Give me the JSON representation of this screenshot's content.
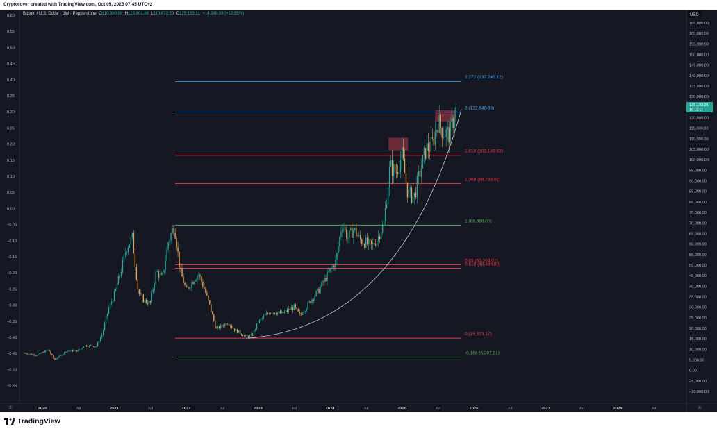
{
  "header": {
    "credit": "Cryptorover created with TradingView.com, Oct 05, 2025 07:45 UTC+2"
  },
  "symbol": {
    "name": "Bitcoin / U.S. Dollar · 1W · Pepperstone",
    "o_label": "O",
    "o": "110,880.09",
    "h_label": "H",
    "h": "125,801.86",
    "l_label": "L",
    "l": "110,672.53",
    "c_label": "C",
    "c": "125,133.31",
    "change": "+14,248.83 (+12.85%)"
  },
  "axes": {
    "currency": "USD",
    "right_ticks": [
      "165,000.00",
      "160,000.00",
      "155,000.00",
      "150,000.00",
      "145,000.00",
      "140,000.00",
      "135,000.00",
      "130,000.00",
      "125,000.00",
      "120,000.00",
      "115,000.00",
      "110,000.00",
      "105,000.00",
      "100,000.00",
      "95,000.00",
      "90,000.00",
      "85,000.00",
      "80,000.00",
      "75,000.00",
      "70,000.00",
      "65,000.00",
      "60,000.00",
      "55,000.00",
      "50,000.00",
      "45,000.00",
      "40,000.00",
      "35,000.00",
      "30,000.00",
      "25,000.00",
      "20,000.00",
      "15,000.00",
      "10,000.00",
      "5,000.00",
      "0.00",
      "−5,000.00",
      "−10,000.00"
    ],
    "left_ticks": [
      "0.60",
      "0.55",
      "0.50",
      "0.45",
      "0.40",
      "0.35",
      "0.30",
      "0.25",
      "0.20",
      "0.15",
      "0.10",
      "0.05",
      "0.00",
      "−0.05",
      "−0.10",
      "−0.15",
      "−0.20",
      "−0.25",
      "−0.30",
      "−0.35",
      "−0.40",
      "−0.45",
      "−0.50",
      "−0.55"
    ],
    "x_ticks": [
      "2020",
      "Jul",
      "2021",
      "Jul",
      "2022",
      "Jul",
      "2023",
      "Jul",
      "2024",
      "Jul",
      "2025",
      "Jul",
      "2026",
      "Jul",
      "2027",
      "Jul",
      "2028",
      "Jul"
    ],
    "x_tick_bold": [
      true,
      false,
      true,
      false,
      true,
      false,
      true,
      false,
      true,
      false,
      true,
      false,
      true,
      false,
      true,
      false,
      true,
      false
    ],
    "price_tag": {
      "value": "125,133.31",
      "sub": "1d 13:11",
      "color": "#26a69a"
    },
    "corner_left": "Z",
    "corner_right": "A"
  },
  "fib_levels": [
    {
      "label": "2.272 (137,245.12)",
      "price": 137245.12,
      "color": "#42a5f5"
    },
    {
      "label": "2 (122,648.83)",
      "price": 122648.83,
      "color": "#42a5f5"
    },
    {
      "label": "1.618 (102,149.63)",
      "price": 102149.63,
      "color": "#f23645"
    },
    {
      "label": "1.368 (88,733.92)",
      "price": 88733.92,
      "color": "#f23645"
    },
    {
      "label": "1 (68,986.00)",
      "price": 68986.0,
      "color": "#4caf50"
    },
    {
      "label": "0.65 (50,204.01)",
      "price": 50204.01,
      "color": "#f23645"
    },
    {
      "label": "0.618 (48,486.80)",
      "price": 48486.8,
      "color": "#f23645"
    },
    {
      "label": "0 (15,323.17)",
      "price": 15323.17,
      "color": "#f23645"
    },
    {
      "label": "-0.168 (6,307.81)",
      "price": 6307.81,
      "color": "#4caf50"
    }
  ],
  "colors": {
    "up": "#26a69a",
    "down": "#e0a25a",
    "curve": "#c9ccd4",
    "box": "#b2394a"
  },
  "chart_data": {
    "type": "candlestick",
    "title": "Bitcoin / U.S. Dollar · 1W · Pepperstone",
    "x_range": [
      "2019-09",
      "2028-10"
    ],
    "ylim": [
      -13500,
      167500
    ],
    "series": [
      {
        "name": "BTCUSD",
        "points": [
          [
            "2019-10",
            8300
          ],
          [
            "2019-12",
            7200
          ],
          [
            "2020-01",
            8500
          ],
          [
            "2020-02",
            9800
          ],
          [
            "2020-03",
            5000
          ],
          [
            "2020-04",
            7000
          ],
          [
            "2020-05",
            9300
          ],
          [
            "2020-07",
            9400
          ],
          [
            "2020-08",
            11800
          ],
          [
            "2020-10",
            11500
          ],
          [
            "2020-11",
            17500
          ],
          [
            "2020-12",
            28900
          ],
          [
            "2021-01",
            36000
          ],
          [
            "2021-02",
            46000
          ],
          [
            "2021-03",
            58000
          ],
          [
            "2021-04",
            63000
          ],
          [
            "2021-05",
            37000
          ],
          [
            "2021-06",
            33000
          ],
          [
            "2021-07",
            32000
          ],
          [
            "2021-08",
            47000
          ],
          [
            "2021-09",
            43500
          ],
          [
            "2021-10",
            61000
          ],
          [
            "2021-11",
            69000
          ],
          [
            "2021-12",
            47000
          ],
          [
            "2022-01",
            38000
          ],
          [
            "2022-03",
            46000
          ],
          [
            "2022-04",
            39000
          ],
          [
            "2022-05",
            30000
          ],
          [
            "2022-06",
            19500
          ],
          [
            "2022-08",
            23000
          ],
          [
            "2022-09",
            19500
          ],
          [
            "2022-11",
            16000
          ],
          [
            "2022-12",
            16500
          ],
          [
            "2023-01",
            23000
          ],
          [
            "2023-03",
            28000
          ],
          [
            "2023-05",
            27000
          ],
          [
            "2023-07",
            30000
          ],
          [
            "2023-08",
            26000
          ],
          [
            "2023-10",
            34000
          ],
          [
            "2023-11",
            37500
          ],
          [
            "2023-12",
            42500
          ],
          [
            "2024-02",
            52000
          ],
          [
            "2024-03",
            70000
          ],
          [
            "2024-04",
            63000
          ],
          [
            "2024-05",
            67000
          ],
          [
            "2024-06",
            62000
          ],
          [
            "2024-08",
            59000
          ],
          [
            "2024-09",
            63000
          ],
          [
            "2024-10",
            70000
          ],
          [
            "2024-11",
            97000
          ],
          [
            "2024-12",
            94000
          ],
          [
            "2025-01",
            102000
          ],
          [
            "2025-02",
            84000
          ],
          [
            "2025-03",
            82000
          ],
          [
            "2025-04",
            94000
          ],
          [
            "2025-05",
            105000
          ],
          [
            "2025-06",
            107000
          ],
          [
            "2025-07",
            118000
          ],
          [
            "2025-08",
            113000
          ],
          [
            "2025-09",
            112000
          ],
          [
            "2025-10",
            125133.31
          ]
        ]
      }
    ]
  }
}
